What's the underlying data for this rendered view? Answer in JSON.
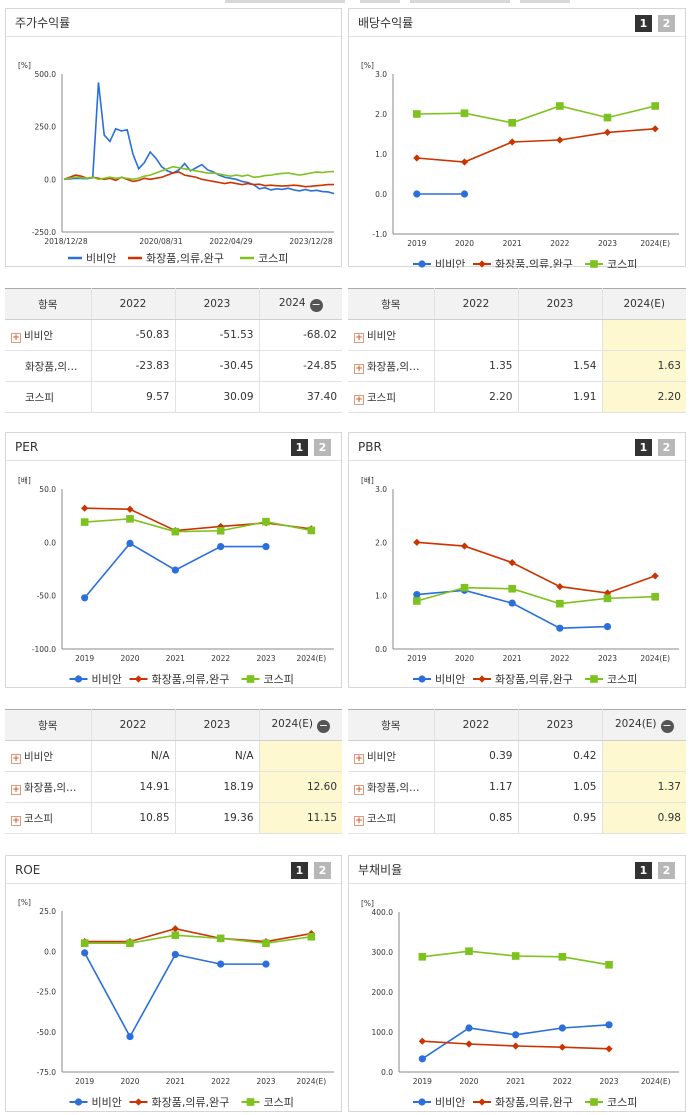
{
  "colors": {
    "vibian": "#2a6fdb",
    "cosmetics": "#cc3300",
    "kospi": "#7dc21e",
    "highlight": "#fdf8d0"
  },
  "legend": [
    "비비안",
    "화장품,의류,완구",
    "코스피"
  ],
  "buttons": {
    "b1": "1",
    "b2": "2"
  },
  "charts": {
    "stock": {
      "title": "주가수익률",
      "unit": "[%]",
      "yticks": [
        "500.0",
        "250.0",
        "0.0",
        "-250.0"
      ],
      "xticks": [
        "2018/12/28",
        "2020/08/31",
        "2022/04/29",
        "2023/12/28"
      ]
    },
    "dividend": {
      "title": "배당수익률",
      "unit": "[%]",
      "yticks": [
        "3.0",
        "2.0",
        "1.0",
        "0.0",
        "-1.0"
      ],
      "xticks": [
        "2019",
        "2020",
        "2021",
        "2022",
        "2023",
        "2024(E)"
      ]
    },
    "per": {
      "title": "PER",
      "unit": "[배]",
      "yticks": [
        "50.0",
        "0.0",
        "-50.0",
        "-100.0"
      ],
      "xticks": [
        "2019",
        "2020",
        "2021",
        "2022",
        "2023",
        "2024(E)"
      ]
    },
    "pbr": {
      "title": "PBR",
      "unit": "[배]",
      "yticks": [
        "3.0",
        "2.0",
        "1.0",
        "0.0"
      ],
      "xticks": [
        "2019",
        "2020",
        "2021",
        "2022",
        "2023",
        "2024(E)"
      ]
    },
    "roe": {
      "title": "ROE",
      "unit": "[%]",
      "yticks": [
        "25.0",
        "0.0",
        "-25.0",
        "-50.0",
        "-75.0"
      ],
      "xticks": [
        "2019",
        "2020",
        "2021",
        "2022",
        "2023",
        "2024(E)"
      ]
    },
    "debt": {
      "title": "부채비율",
      "unit": "[%]",
      "yticks": [
        "400.0",
        "300.0",
        "200.0",
        "100.0",
        "0.0"
      ],
      "xticks": [
        "2019",
        "2020",
        "2021",
        "2022",
        "2023",
        "2024(E)"
      ]
    }
  },
  "tables": {
    "stock": {
      "headers": [
        "항목",
        "2022",
        "2023",
        "2024"
      ],
      "rows": [
        {
          "name": "비비안",
          "plus": true,
          "vals": [
            "-50.83",
            "-51.53",
            "-68.02"
          ]
        },
        {
          "name": "화장품,의…",
          "plus": false,
          "vals": [
            "-23.83",
            "-30.45",
            "-24.85"
          ]
        },
        {
          "name": "코스피",
          "plus": false,
          "vals": [
            "9.57",
            "30.09",
            "37.40"
          ]
        }
      ]
    },
    "dividend": {
      "headers": [
        "항목",
        "2022",
        "2023",
        "2024(E)"
      ],
      "rows": [
        {
          "name": "비비안",
          "plus": true,
          "vals": [
            "",
            "",
            ""
          ]
        },
        {
          "name": "화장품,의…",
          "plus": true,
          "vals": [
            "1.35",
            "1.54",
            "1.63"
          ]
        },
        {
          "name": "코스피",
          "plus": true,
          "vals": [
            "2.20",
            "1.91",
            "2.20"
          ]
        }
      ]
    },
    "per": {
      "headers": [
        "항목",
        "2022",
        "2023",
        "2024(E)"
      ],
      "rows": [
        {
          "name": "비비안",
          "plus": true,
          "vals": [
            "N/A",
            "N/A",
            ""
          ]
        },
        {
          "name": "화장품,의…",
          "plus": true,
          "vals": [
            "14.91",
            "18.19",
            "12.60"
          ]
        },
        {
          "name": "코스피",
          "plus": true,
          "vals": [
            "10.85",
            "19.36",
            "11.15"
          ]
        }
      ]
    },
    "pbr": {
      "headers": [
        "항목",
        "2022",
        "2023",
        "2024(E)"
      ],
      "rows": [
        {
          "name": "비비안",
          "plus": true,
          "vals": [
            "0.39",
            "0.42",
            ""
          ]
        },
        {
          "name": "화장품,의…",
          "plus": true,
          "vals": [
            "1.17",
            "1.05",
            "1.37"
          ]
        },
        {
          "name": "코스피",
          "plus": true,
          "vals": [
            "0.85",
            "0.95",
            "0.98"
          ]
        }
      ]
    }
  },
  "chart_data": [
    {
      "type": "line",
      "title": "주가수익률",
      "ylim": [
        -250,
        500
      ],
      "x_range": [
        "2018/12/28",
        "2024/06"
      ],
      "series": [
        {
          "name": "비비안",
          "values": [
            0,
            2,
            5,
            4,
            3,
            8,
            460,
            210,
            180,
            240,
            230,
            235,
            120,
            50,
            80,
            130,
            100,
            60,
            40,
            30,
            45,
            75,
            40,
            55,
            70,
            45,
            35,
            20,
            10,
            5,
            0,
            -10,
            -15,
            -25,
            -45,
            -40,
            -50,
            -45,
            -48,
            -42,
            -50,
            -55,
            -48,
            -55,
            -52,
            -58,
            -60,
            -68
          ]
        },
        {
          "name": "화장품,의류,완구",
          "values": [
            0,
            10,
            20,
            15,
            5,
            10,
            5,
            0,
            5,
            -5,
            10,
            0,
            -10,
            -5,
            5,
            0,
            5,
            10,
            20,
            30,
            35,
            20,
            15,
            10,
            0,
            -5,
            -10,
            -15,
            -20,
            -15,
            -20,
            -25,
            -20,
            -25,
            -23,
            -30,
            -28,
            -30,
            -32,
            -30,
            -28,
            -30,
            -35,
            -33,
            -30,
            -28,
            -25,
            -25
          ]
        },
        {
          "name": "코스피",
          "values": [
            0,
            5,
            10,
            8,
            5,
            10,
            0,
            5,
            10,
            5,
            8,
            5,
            0,
            5,
            15,
            20,
            30,
            40,
            50,
            60,
            55,
            50,
            45,
            40,
            35,
            30,
            30,
            25,
            20,
            15,
            20,
            15,
            20,
            10,
            12,
            18,
            20,
            25,
            28,
            30,
            25,
            20,
            25,
            30,
            35,
            32,
            36,
            37
          ]
        }
      ]
    },
    {
      "type": "line",
      "title": "배당수익률",
      "ylim": [
        -1,
        3
      ],
      "categories": [
        "2019",
        "2020",
        "2021",
        "2022",
        "2023",
        "2024(E)"
      ],
      "series": [
        {
          "name": "비비안",
          "values": [
            0,
            0,
            null,
            null,
            null,
            null
          ]
        },
        {
          "name": "화장품,의류,완구",
          "values": [
            0.9,
            0.8,
            1.3,
            1.35,
            1.54,
            1.63
          ]
        },
        {
          "name": "코스피",
          "values": [
            2.0,
            2.02,
            1.78,
            2.2,
            1.91,
            2.2
          ]
        }
      ]
    },
    {
      "type": "line",
      "title": "PER",
      "ylim": [
        -100,
        50
      ],
      "categories": [
        "2019",
        "2020",
        "2021",
        "2022",
        "2023",
        "2024(E)"
      ],
      "series": [
        {
          "name": "비비안",
          "values": [
            -52,
            -1,
            -26,
            -4,
            -4,
            null
          ]
        },
        {
          "name": "화장품,의류,완구",
          "values": [
            32,
            31,
            11,
            14.91,
            18.19,
            12.6
          ]
        },
        {
          "name": "코스피",
          "values": [
            19,
            22,
            10,
            10.85,
            19.36,
            11.15
          ]
        }
      ]
    },
    {
      "type": "line",
      "title": "PBR",
      "ylim": [
        0,
        3
      ],
      "categories": [
        "2019",
        "2020",
        "2021",
        "2022",
        "2023",
        "2024(E)"
      ],
      "series": [
        {
          "name": "비비안",
          "values": [
            1.02,
            1.1,
            0.86,
            0.39,
            0.42,
            null
          ]
        },
        {
          "name": "화장품,의류,완구",
          "values": [
            2.0,
            1.93,
            1.62,
            1.17,
            1.05,
            1.37
          ]
        },
        {
          "name": "코스피",
          "values": [
            0.9,
            1.15,
            1.13,
            0.85,
            0.95,
            0.98
          ]
        }
      ]
    },
    {
      "type": "line",
      "title": "ROE",
      "ylim": [
        -75,
        25
      ],
      "categories": [
        "2019",
        "2020",
        "2021",
        "2022",
        "2023",
        "2024(E)"
      ],
      "series": [
        {
          "name": "비비안",
          "values": [
            -1,
            -53,
            -2,
            -8,
            -8,
            null
          ]
        },
        {
          "name": "화장품,의류,완구",
          "values": [
            6,
            6,
            14,
            8,
            6,
            11
          ]
        },
        {
          "name": "코스피",
          "values": [
            5,
            5,
            10,
            8,
            5,
            9
          ]
        }
      ]
    },
    {
      "type": "line",
      "title": "부채비율",
      "ylim": [
        0,
        400
      ],
      "categories": [
        "2019",
        "2020",
        "2021",
        "2022",
        "2023",
        "2024(E)"
      ],
      "series": [
        {
          "name": "비비안",
          "values": [
            33,
            110,
            93,
            110,
            118,
            null
          ]
        },
        {
          "name": "화장품,의류,완구",
          "values": [
            77,
            70,
            65,
            62,
            58,
            null
          ]
        },
        {
          "name": "코스피",
          "values": [
            288,
            302,
            290,
            288,
            268,
            null
          ]
        }
      ]
    }
  ]
}
